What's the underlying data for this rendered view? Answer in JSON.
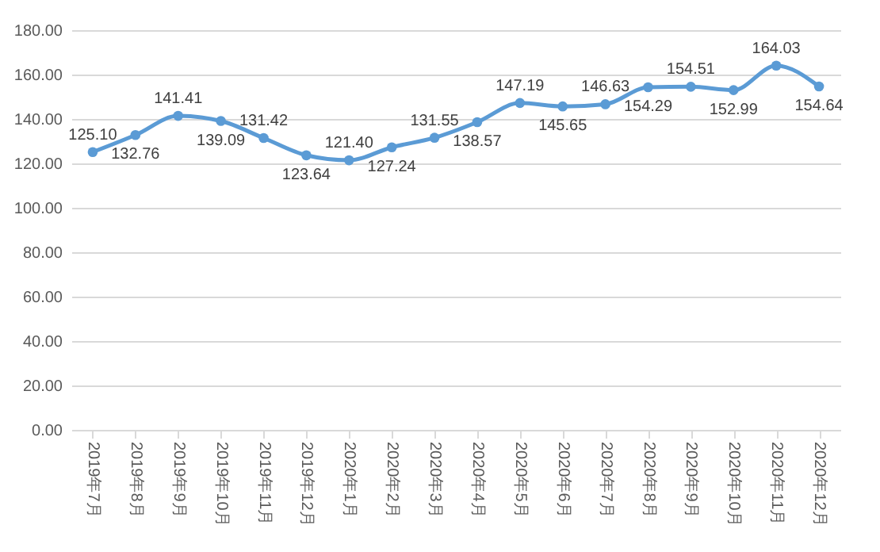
{
  "chart_data": {
    "type": "line",
    "categories": [
      "2019年7月",
      "2019年8月",
      "2019年9月",
      "2019年10月",
      "2019年11月",
      "2019年12月",
      "2020年1月",
      "2020年2月",
      "2020年3月",
      "2020年4月",
      "2020年5月",
      "2020年6月",
      "2020年7月",
      "2020年8月",
      "2020年9月",
      "2020年10月",
      "2020年11月",
      "2020年12月"
    ],
    "series": [
      {
        "color": "#5b9bd5",
        "values": [
          125.1,
          132.76,
          141.41,
          139.09,
          131.42,
          123.64,
          121.4,
          127.24,
          131.55,
          138.57,
          147.19,
          145.65,
          146.63,
          154.29,
          154.51,
          152.99,
          164.03,
          154.64
        ]
      }
    ],
    "ylim": [
      0,
      180
    ],
    "yticks": [
      {
        "value": 0,
        "label": "0.00"
      },
      {
        "value": 20,
        "label": "20.00"
      },
      {
        "value": 40,
        "label": "40.00"
      },
      {
        "value": 60,
        "label": "60.00"
      },
      {
        "value": 80,
        "label": "80.00"
      },
      {
        "value": 100,
        "label": "100.00"
      },
      {
        "value": 120,
        "label": "120.00"
      },
      {
        "value": 140,
        "label": "140.00"
      },
      {
        "value": 160,
        "label": "160.00"
      },
      {
        "value": 180,
        "label": "180.00"
      }
    ],
    "value_labels": [
      "125.10",
      "132.76",
      "141.41",
      "139.09",
      "131.42",
      "123.64",
      "121.40",
      "127.24",
      "131.55",
      "138.57",
      "147.19",
      "145.65",
      "146.63",
      "154.29",
      "154.51",
      "152.99",
      "164.03",
      "154.64"
    ],
    "grid": "y",
    "marker": "circle",
    "line_style": "solid"
  }
}
